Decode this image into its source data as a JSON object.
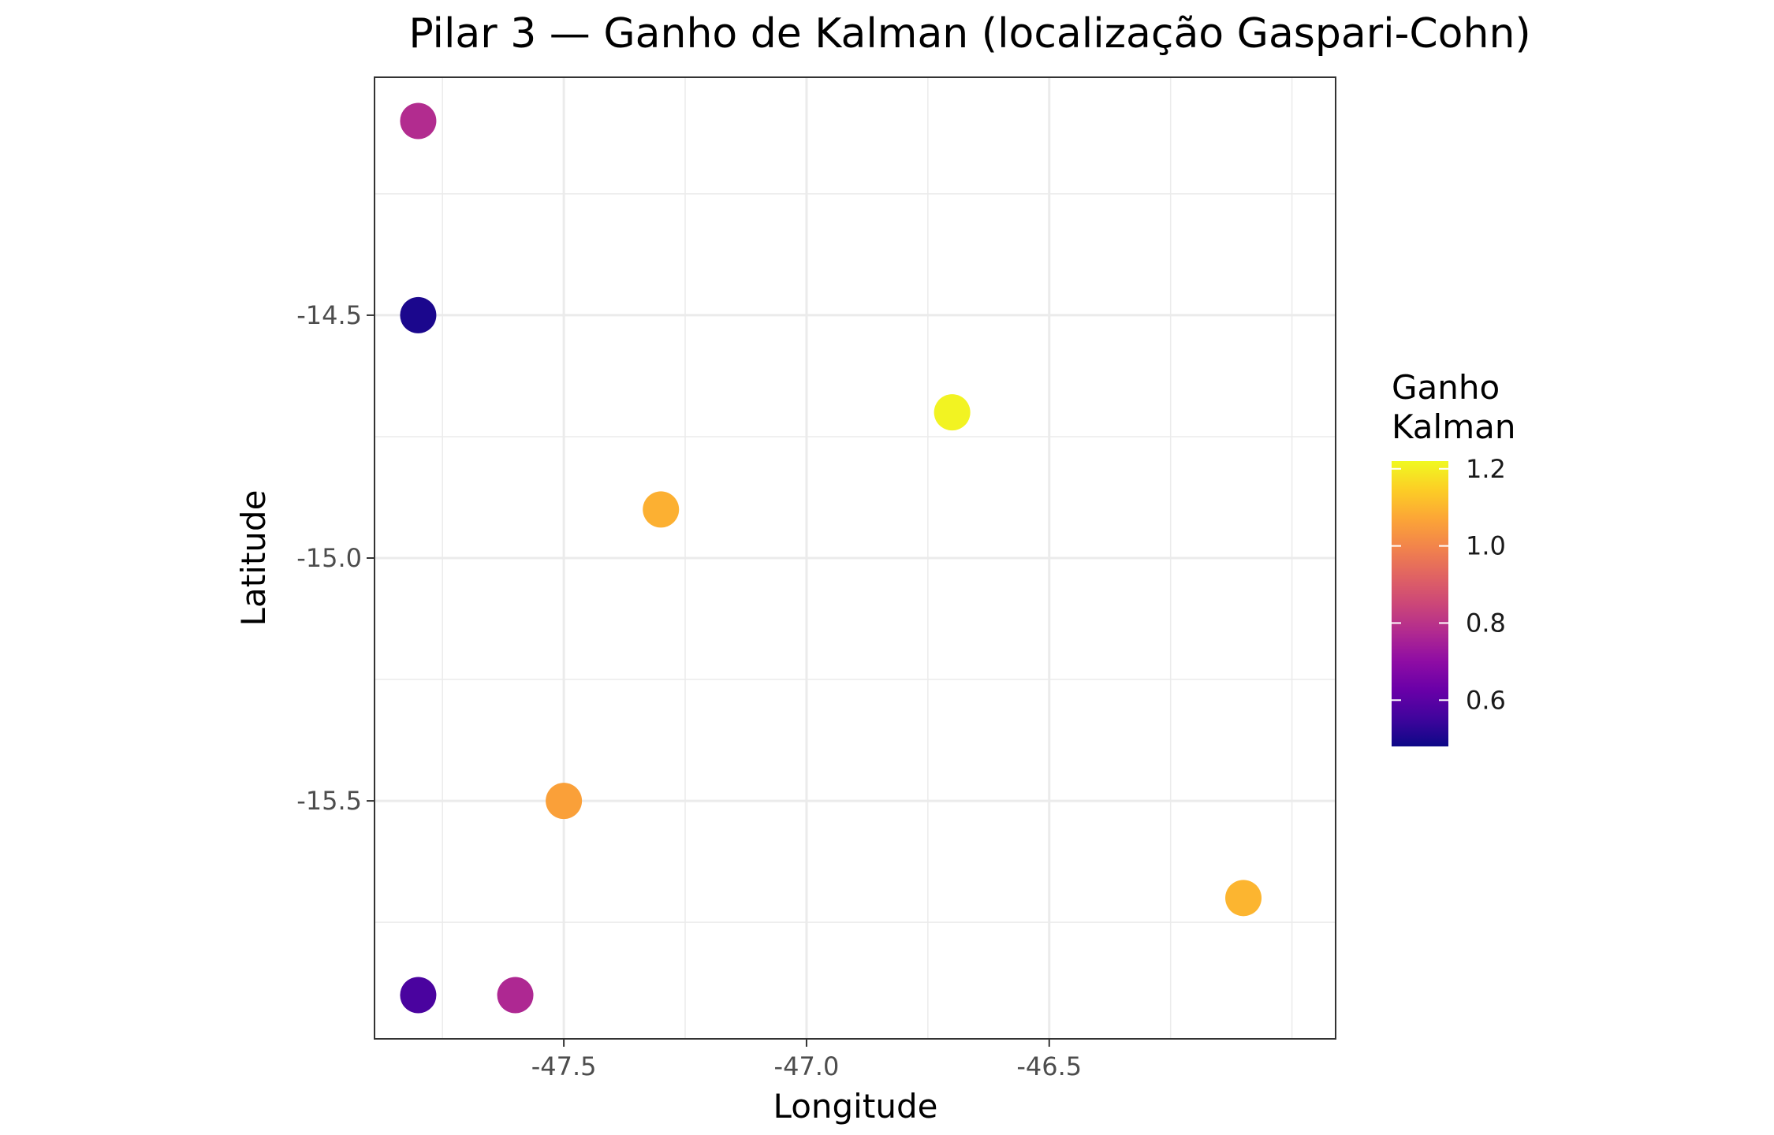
{
  "chart_data": {
    "type": "scatter",
    "title": "Pilar 3 — Ganho de Kalman (localização Gaspari-Cohn)",
    "xlabel": "Longitude",
    "ylabel": "Latitude",
    "xlim": [
      -47.89,
      -45.91
    ],
    "ylim": [
      -15.99,
      -14.01
    ],
    "x_ticks": [
      -47.5,
      -47.0,
      -46.5
    ],
    "x_tick_labels": [
      "-47.5",
      "-47.0",
      "-46.5"
    ],
    "y_ticks": [
      -14.5,
      -15.0,
      -15.5
    ],
    "y_tick_labels": [
      "-14.5",
      "-15.0",
      "-15.5"
    ],
    "grid": true,
    "color_scale": "plasma",
    "color_range": [
      0.48,
      1.22
    ],
    "legend": {
      "title_lines": [
        "Ganho",
        "Kalman"
      ],
      "placement": "right",
      "ticks": [
        1.2,
        1.0,
        0.8,
        0.6
      ],
      "tick_labels": [
        "1.2",
        "1.0",
        "0.8",
        "0.6"
      ]
    },
    "points": [
      {
        "x": -47.8,
        "y": -14.1,
        "value": 0.78
      },
      {
        "x": -47.8,
        "y": -14.5,
        "value": 0.5
      },
      {
        "x": -46.7,
        "y": -14.7,
        "value": 1.21
      },
      {
        "x": -47.3,
        "y": -14.9,
        "value": 1.09
      },
      {
        "x": -47.5,
        "y": -15.5,
        "value": 1.06
      },
      {
        "x": -46.1,
        "y": -15.7,
        "value": 1.1
      },
      {
        "x": -47.8,
        "y": -15.9,
        "value": 0.57
      },
      {
        "x": -47.6,
        "y": -15.9,
        "value": 0.77
      }
    ]
  }
}
